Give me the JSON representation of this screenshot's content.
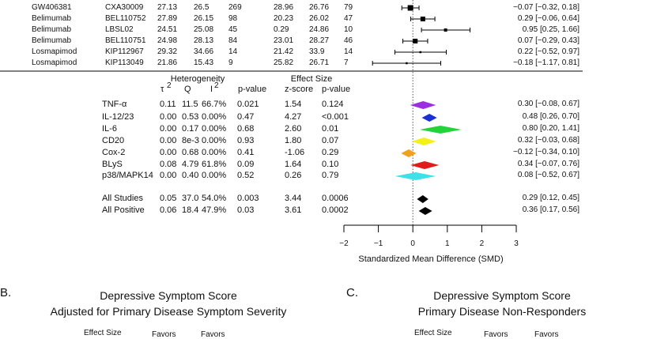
{
  "chart_data": {
    "type": "forest",
    "xlabel": "Standardized Mean Difference (SMD)",
    "xlim": [
      -2,
      3
    ],
    "ticks": [
      -2,
      -1,
      0,
      1,
      2,
      3
    ],
    "tick_labels": [
      "−2",
      "−1",
      "0",
      "1",
      "2",
      "3"
    ],
    "studies": [
      {
        "drug": "GW406381",
        "study": "CXA30009",
        "m1": "27.13",
        "m2": "26.5",
        "n1": "269",
        "m3": "28.96",
        "m4": "26.76",
        "n2": "79",
        "smd": -0.07,
        "lo": -0.32,
        "hi": 0.18,
        "ci_text": "−0.07 [−0.32, 0.18]"
      },
      {
        "drug": "Belimumab",
        "study": "BEL110752",
        "m1": "27.89",
        "m2": "26.15",
        "n1": "98",
        "m3": "20.23",
        "m4": "26.02",
        "n2": "47",
        "smd": 0.29,
        "lo": -0.06,
        "hi": 0.64,
        "ci_text": "0.29 [−0.06, 0.64]"
      },
      {
        "drug": "Belimumab",
        "study": "LBSL02",
        "m1": "24.51",
        "m2": "25.08",
        "n1": "45",
        "m3": "0.29",
        "m4": "24.86",
        "n2": "10",
        "smd": 0.95,
        "lo": 0.25,
        "hi": 1.66,
        "ci_text": "0.95 [0.25, 1.66]"
      },
      {
        "drug": "Belimumab",
        "study": "BEL110751",
        "m1": "24.98",
        "m2": "28.13",
        "n1": "84",
        "m3": "23.01",
        "m4": "28.27",
        "n2": "46",
        "smd": 0.07,
        "lo": -0.29,
        "hi": 0.43,
        "ci_text": "0.07 [−0.29, 0.43]"
      },
      {
        "drug": "Losmapimod",
        "study": "KIP112967",
        "m1": "29.32",
        "m2": "34.66",
        "n1": "14",
        "m3": "21.42",
        "m4": "33.9",
        "n2": "14",
        "smd": 0.22,
        "lo": -0.52,
        "hi": 0.97,
        "ci_text": "0.22 [−0.52, 0.97]"
      },
      {
        "drug": "Losmapimod",
        "study": "KIP113049",
        "m1": "21.86",
        "m2": "15.43",
        "n1": "9",
        "m3": "25.82",
        "m4": "26.71",
        "n2": "7",
        "smd": -0.18,
        "lo": -1.17,
        "hi": 0.81,
        "ci_text": "−0.18 [−1.17, 0.81]"
      }
    ],
    "summary_header": {
      "heterogeneity": "Heterogeneity",
      "effect_size": "Effect Size",
      "tau": "τ",
      "tau_sup": "2",
      "q": "Q",
      "i": "I",
      "i_sup": "2",
      "pvalue": "p-value",
      "zscore": "z-score",
      "pvalue2": "p-value"
    },
    "summaries": [
      {
        "name": "TNF-α",
        "tau2": "0.11",
        "q": "11.5",
        "i2": "66.7%",
        "p": "0.021",
        "z": "1.54",
        "p2": "0.124",
        "est": 0.3,
        "lo": -0.08,
        "hi": 0.67,
        "color": "#9b30e0",
        "ci_text": "0.30 [−0.08, 0.67]"
      },
      {
        "name": "IL-12/23",
        "tau2": "0.00",
        "q": "0.53",
        "i2": "0.00%",
        "p": "0.47",
        "z": "4.27",
        "p2": "<0.001",
        "est": 0.48,
        "lo": 0.26,
        "hi": 0.7,
        "color": "#1a2fd6",
        "ci_text": "0.48 [0.26, 0.70]"
      },
      {
        "name": "IL-6",
        "tau2": "0.00",
        "q": "0.17",
        "i2": "0.00%",
        "p": "0.68",
        "z": "2.60",
        "p2": "0.01",
        "est": 0.8,
        "lo": 0.2,
        "hi": 1.41,
        "color": "#22d43a",
        "ci_text": "0.80 [0.20, 1.41]"
      },
      {
        "name": "CD20",
        "tau2": "0.00",
        "q": "8e-3",
        "i2": "0.00%",
        "p": "0.93",
        "z": "1.80",
        "p2": "0.07",
        "est": 0.32,
        "lo": -0.03,
        "hi": 0.68,
        "color": "#f2f21a",
        "ci_text": "0.32 [−0.03, 0.68]"
      },
      {
        "name": "Cox-2",
        "tau2": "0.00",
        "q": "0.68",
        "i2": "0.00%",
        "p": "0.41",
        "z": "-1.06",
        "p2": "0.29",
        "est": -0.12,
        "lo": -0.34,
        "hi": 0.1,
        "color": "#f0a21e",
        "ci_text": "−0.12 [−0.34, 0.10]"
      },
      {
        "name": "BLyS",
        "tau2": "0.08",
        "q": "4.79",
        "i2": "61.8%",
        "p": "0.09",
        "z": "1.64",
        "p2": "0.10",
        "est": 0.34,
        "lo": -0.07,
        "hi": 0.76,
        "color": "#e21a1a",
        "ci_text": "0.34 [−0.07, 0.76]"
      },
      {
        "name": "p38/MAPK14",
        "tau2": "0.00",
        "q": "0.40",
        "i2": "0.00%",
        "p": "0.52",
        "z": "0.26",
        "p2": "0.79",
        "est": 0.08,
        "lo": -0.52,
        "hi": 0.67,
        "color": "#3ce2e8",
        "ci_text": "0.08 [−0.52, 0.67]"
      }
    ],
    "overall": [
      {
        "name": "All Studies",
        "tau2": "0.05",
        "q": "37.0",
        "i2": "54.0%",
        "p": "0.003",
        "z": "3.44",
        "p2": "0.0006",
        "est": 0.29,
        "lo": 0.12,
        "hi": 0.45,
        "color": "#000000",
        "ci_text": "0.29 [0.12, 0.45]"
      },
      {
        "name": "All Positive",
        "tau2": "0.06",
        "q": "18.4",
        "i2": "47.9%",
        "p": "0.03",
        "z": "3.61",
        "p2": "0.0002",
        "est": 0.36,
        "lo": 0.17,
        "hi": 0.56,
        "color": "#000000",
        "ci_text": "0.36 [0.17, 0.56]"
      }
    ]
  },
  "panel_b": {
    "letter": "B.",
    "title_line1": "Depressive Symptom Score",
    "title_line2": "Adjusted for Primary Disease Symptom Severity",
    "col_effect": "Effect Size",
    "col_favors1": "Favors",
    "col_favors2": "Favors"
  },
  "panel_c": {
    "letter": "C.",
    "title_line1": "Depressive Symptom Score",
    "title_line2": "Primary Disease Non-Responders",
    "col_effect": "Effect Size",
    "col_favors1": "Favors",
    "col_favors2": "Favors"
  }
}
